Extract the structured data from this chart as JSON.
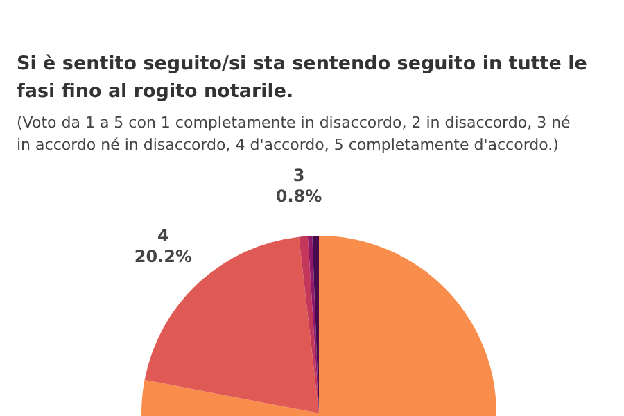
{
  "chart_data": {
    "type": "pie",
    "title": "Si è sentito seguito/si sta sentendo seguito in tutte le fasi fino al rogito notarile.",
    "subtitle": "(Voto da 1 a 5 con 1 completamente in disaccordo, 2 in disaccordo, 3 né in accordo né in disaccordo, 4 d'accordo, 5 completamente d'accordo.)",
    "categories": [
      null,
      "4",
      "3",
      null,
      null
    ],
    "values": [
      78.0,
      20.2,
      0.8,
      0.4,
      0.6
    ],
    "value_labels": [
      null,
      "20.2%",
      "0.8%",
      null,
      null
    ],
    "colors": [
      "#f98e4c",
      "#e05a55",
      "#c2375a",
      "#8e1a6e",
      "#4a0a4e"
    ]
  }
}
